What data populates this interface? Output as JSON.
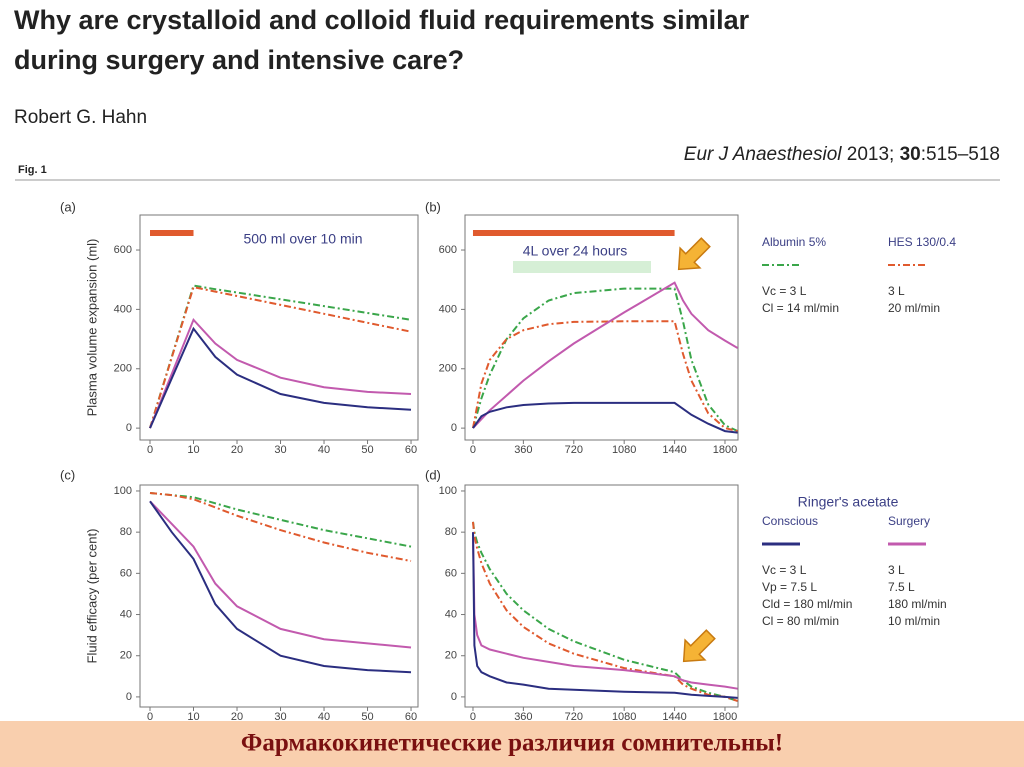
{
  "header": {
    "title_lines": [
      "Why are crystalloid and colloid fluid requirements similar",
      "during surgery and intensive care?"
    ],
    "author": "Robert G. Hahn",
    "journal": "Eur J Anaesthesiol",
    "year": "2013;",
    "volume": "30",
    "pages": ":515–518",
    "figure_label": "Fig. 1"
  },
  "chart_data": [
    {
      "type": "line",
      "label": "(a)",
      "ylabel": "Plasma volume expansion (ml)",
      "annotation": "500 ml over 10 min",
      "infusion": {
        "start": 0,
        "end": 10,
        "color": "#e05a2e"
      },
      "xlim": [
        -2.3,
        61.6
      ],
      "ylim": [
        -40,
        718
      ],
      "xticks": [
        0,
        10,
        20,
        30,
        40,
        50,
        60
      ],
      "yticks": [
        0,
        200,
        400,
        600
      ],
      "x": [
        0,
        10,
        15,
        20,
        30,
        40,
        50,
        60
      ],
      "series": [
        {
          "color": "#3aa64a",
          "dash": "dashdot",
          "values": [
            0,
            480,
            468,
            457,
            434,
            411,
            388,
            365
          ]
        },
        {
          "color": "#e05a2e",
          "dash": "dashdot",
          "values": [
            0,
            475,
            460,
            445,
            415,
            385,
            355,
            325
          ]
        },
        {
          "color": "#c25aae",
          "dash": "solid",
          "values": [
            0,
            365,
            285,
            230,
            170,
            138,
            122,
            115
          ]
        },
        {
          "color": "#2b2e80",
          "dash": "solid",
          "values": [
            0,
            335,
            240,
            180,
            115,
            85,
            70,
            62
          ]
        }
      ]
    },
    {
      "type": "line",
      "label": "(b)",
      "annotation": "4L over 24 hours",
      "infusion": {
        "start": 0,
        "end": 1440,
        "color": "#e05a2e"
      },
      "xlim": [
        -57,
        1893
      ],
      "ylim": [
        -40,
        718
      ],
      "xticks": [
        0,
        360,
        720,
        1080,
        1440,
        1800
      ],
      "yticks": [
        0,
        200,
        400,
        600
      ],
      "x": [
        0,
        60,
        120,
        240,
        360,
        540,
        720,
        1080,
        1440,
        1500,
        1560,
        1680,
        1800,
        1890
      ],
      "series": [
        {
          "color": "#3aa64a",
          "dash": "dashdot",
          "values": [
            0,
            100,
            180,
            300,
            370,
            430,
            455,
            470,
            470,
            360,
            230,
            80,
            10,
            -10
          ]
        },
        {
          "color": "#e05a2e",
          "dash": "dashdot",
          "values": [
            0,
            150,
            230,
            300,
            330,
            350,
            358,
            360,
            360,
            250,
            160,
            50,
            0,
            -10
          ]
        },
        {
          "color": "#c25aae",
          "dash": "solid",
          "values": [
            0,
            30,
            60,
            110,
            160,
            225,
            285,
            390,
            490,
            430,
            385,
            330,
            295,
            270
          ]
        },
        {
          "color": "#2b2e80",
          "dash": "solid",
          "values": [
            0,
            40,
            55,
            70,
            78,
            83,
            85,
            85,
            85,
            65,
            45,
            15,
            -10,
            -15
          ]
        }
      ]
    },
    {
      "type": "line",
      "label": "(c)",
      "ylabel": "Fluid efficacy (per cent)",
      "xlim": [
        -2.3,
        61.6
      ],
      "ylim": [
        -4.9,
        102.9
      ],
      "xticks": [
        0,
        10,
        20,
        30,
        40,
        50,
        60
      ],
      "yticks": [
        0,
        20,
        40,
        60,
        80,
        100
      ],
      "x": [
        0,
        5,
        10,
        15,
        20,
        30,
        40,
        50,
        60
      ],
      "series": [
        {
          "color": "#3aa64a",
          "dash": "dashdot",
          "values": [
            99,
            98,
            97,
            94,
            91,
            86,
            81,
            77,
            73
          ]
        },
        {
          "color": "#e05a2e",
          "dash": "dashdot",
          "values": [
            99,
            98,
            96,
            92,
            88,
            81,
            75,
            70,
            66
          ]
        },
        {
          "color": "#c25aae",
          "dash": "solid",
          "values": [
            95,
            84,
            73,
            55,
            44,
            33,
            28,
            26,
            24
          ]
        },
        {
          "color": "#2b2e80",
          "dash": "solid",
          "values": [
            95,
            80,
            67,
            45,
            33,
            20,
            15,
            13,
            12
          ]
        }
      ]
    },
    {
      "type": "line",
      "label": "(d)",
      "xlim": [
        -57,
        1893
      ],
      "ylim": [
        -4.9,
        102.9
      ],
      "xticks": [
        0,
        360,
        720,
        1080,
        1440,
        1800
      ],
      "yticks": [
        0,
        20,
        40,
        60,
        80,
        100
      ],
      "x": [
        0,
        10,
        30,
        60,
        120,
        240,
        360,
        540,
        720,
        1080,
        1440,
        1500,
        1560,
        1680,
        1800,
        1890
      ],
      "series": [
        {
          "color": "#3aa64a",
          "dash": "dashdot",
          "values": [
            85,
            80,
            75,
            70,
            62,
            50,
            42,
            33,
            27,
            18,
            12,
            8,
            5,
            2,
            0,
            -2
          ]
        },
        {
          "color": "#e05a2e",
          "dash": "dashdot",
          "values": [
            85,
            78,
            72,
            65,
            55,
            42,
            34,
            26,
            21,
            14,
            10,
            6,
            4,
            1,
            0,
            -2
          ]
        },
        {
          "color": "#c25aae",
          "dash": "solid",
          "values": [
            80,
            40,
            30,
            25,
            23,
            21,
            19,
            17,
            15,
            13,
            10,
            8,
            7,
            6,
            5,
            4
          ]
        },
        {
          "color": "#2b2e80",
          "dash": "solid",
          "values": [
            80,
            25,
            15,
            12,
            10,
            7,
            6,
            4,
            3.5,
            2.5,
            2,
            1.5,
            1,
            0.5,
            0,
            -0.5
          ]
        }
      ]
    }
  ],
  "legend": {
    "colloids": [
      {
        "name": "Albumin 5%",
        "color": "#3aa64a",
        "dash": "dashdot",
        "params": [
          "Vc = 3 L",
          "Cl = 14 ml/min"
        ]
      },
      {
        "name": "HES 130/0.4",
        "color": "#e05a2e",
        "dash": "dashdot",
        "params": [
          "3 L",
          "20 ml/min"
        ]
      }
    ],
    "crystalloid_title": "Ringer's acetate",
    "crystalloid": [
      {
        "name": "Conscious",
        "color": "#2b2e80",
        "dash": "solid",
        "params": [
          "Vc = 3 L",
          "Vp = 7.5 L",
          "Cld = 180 ml/min",
          "Cl = 80 ml/min"
        ]
      },
      {
        "name": "Surgery",
        "color": "#c25aae",
        "dash": "solid",
        "params": [
          "3 L",
          "7.5 L",
          "180 ml/min",
          "10 ml/min"
        ]
      }
    ]
  },
  "footer": "Фармакокинетические различия сомнительны!"
}
